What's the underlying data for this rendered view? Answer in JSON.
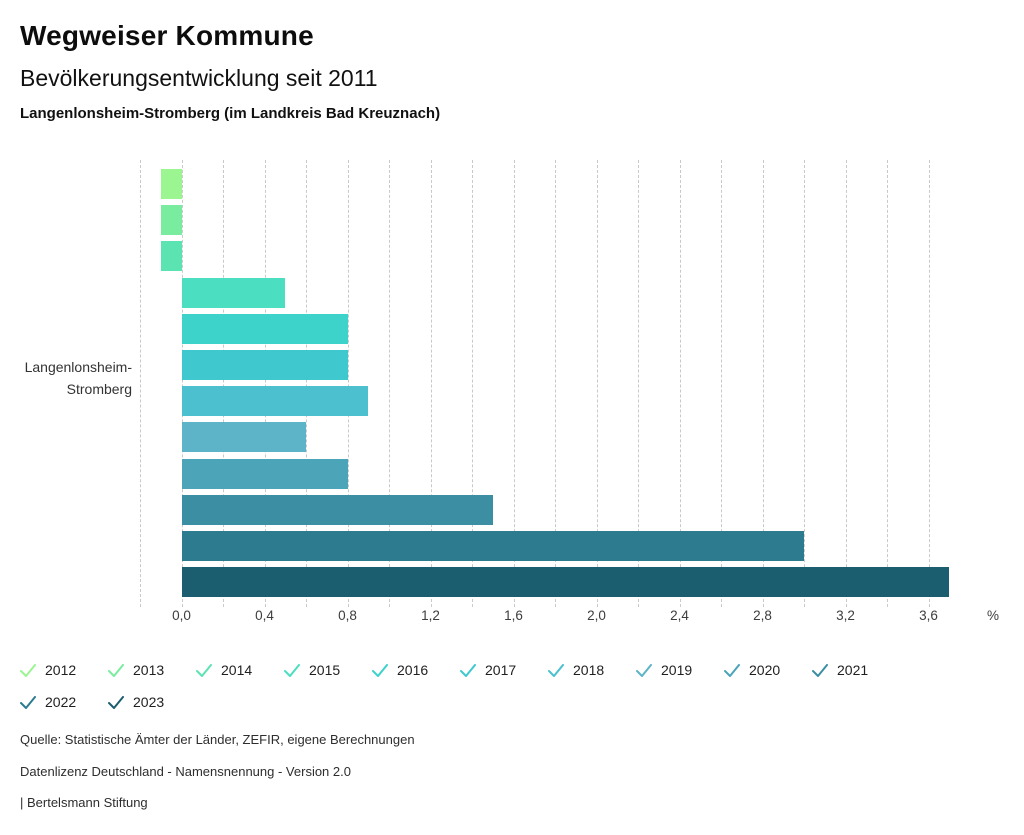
{
  "header": {
    "title": "Wegweiser Kommune",
    "subtitle": "Bevölkerungsentwicklung seit 2011",
    "region": "Langenlonsheim-Stromberg (im Landkreis Bad Kreuznach)"
  },
  "chart_data": {
    "type": "bar",
    "orientation": "horizontal",
    "title": "Bevölkerungsentwicklung seit 2011",
    "category": "Langenlonsheim-Stromberg",
    "category_label_lines": [
      "Langenlonsheim-",
      "Stromberg"
    ],
    "unit": "%",
    "series": [
      {
        "name": "2012",
        "value": -0.1,
        "color": "#9bf591"
      },
      {
        "name": "2013",
        "value": -0.1,
        "color": "#7aec9f"
      },
      {
        "name": "2014",
        "value": -0.1,
        "color": "#5ce3b2"
      },
      {
        "name": "2015",
        "value": 0.5,
        "color": "#4bdec1"
      },
      {
        "name": "2016",
        "value": 0.8,
        "color": "#3dd3cb"
      },
      {
        "name": "2017",
        "value": 0.8,
        "color": "#3fc9cf"
      },
      {
        "name": "2018",
        "value": 0.9,
        "color": "#4cc0ce"
      },
      {
        "name": "2019",
        "value": 0.6,
        "color": "#5db3c7"
      },
      {
        "name": "2020",
        "value": 0.8,
        "color": "#4ba4b7"
      },
      {
        "name": "2021",
        "value": 1.5,
        "color": "#3c8ea3"
      },
      {
        "name": "2022",
        "value": 3.0,
        "color": "#2d7b8f"
      },
      {
        "name": "2023",
        "value": 3.7,
        "color": "#1b5e70"
      }
    ],
    "xlim": [
      -0.2,
      3.8
    ],
    "x_ticks": [
      {
        "value": 0.0,
        "label": "0,0"
      },
      {
        "value": 0.4,
        "label": "0,4"
      },
      {
        "value": 0.8,
        "label": "0,8"
      },
      {
        "value": 1.2,
        "label": "1,2"
      },
      {
        "value": 1.6,
        "label": "1,6"
      },
      {
        "value": 2.0,
        "label": "2,0"
      },
      {
        "value": 2.4,
        "label": "2,4"
      },
      {
        "value": 2.8,
        "label": "2,8"
      },
      {
        "value": 3.2,
        "label": "3,2"
      },
      {
        "value": 3.6,
        "label": "3,6"
      }
    ],
    "grid": {
      "step": 0.2,
      "start": -0.2,
      "end": 3.6,
      "style": "dashed",
      "color": "#c9c9c9"
    },
    "legend_position": "bottom"
  },
  "footer": {
    "source": "Quelle: Statistische Ämter der Länder, ZEFIR, eigene Berechnungen",
    "license": "Datenlizenz Deutschland - Namensnennung - Version 2.0",
    "attribution": "| Bertelsmann Stiftung"
  }
}
